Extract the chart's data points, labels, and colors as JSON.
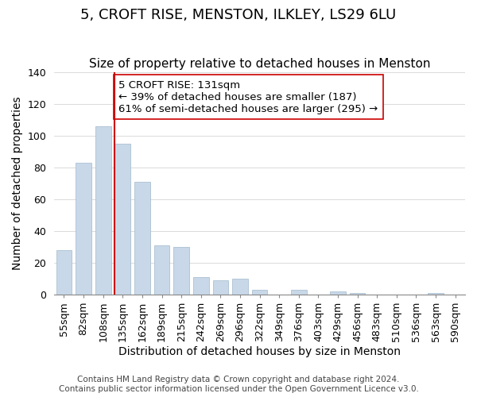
{
  "title": "5, CROFT RISE, MENSTON, ILKLEY, LS29 6LU",
  "subtitle": "Size of property relative to detached houses in Menston",
  "xlabel": "Distribution of detached houses by size in Menston",
  "ylabel": "Number of detached properties",
  "footer_lines": [
    "Contains HM Land Registry data © Crown copyright and database right 2024.",
    "Contains public sector information licensed under the Open Government Licence v3.0."
  ],
  "categories": [
    "55sqm",
    "82sqm",
    "108sqm",
    "135sqm",
    "162sqm",
    "189sqm",
    "215sqm",
    "242sqm",
    "269sqm",
    "296sqm",
    "322sqm",
    "349sqm",
    "376sqm",
    "403sqm",
    "429sqm",
    "456sqm",
    "483sqm",
    "510sqm",
    "536sqm",
    "563sqm",
    "590sqm"
  ],
  "values": [
    28,
    83,
    106,
    95,
    71,
    31,
    30,
    11,
    9,
    10,
    3,
    0,
    3,
    0,
    2,
    1,
    0,
    0,
    0,
    1,
    0
  ],
  "bar_color": "#c8d8e8",
  "bar_edge_color": "#a0b8cc",
  "vline_x_index": 3,
  "vline_color": "#cc0000",
  "annotation_text": "5 CROFT RISE: 131sqm\n← 39% of detached houses are smaller (187)\n61% of semi-detached houses are larger (295) →",
  "annotation_box_color": "#ffffff",
  "annotation_box_edge": "#cc0000",
  "ylim": [
    0,
    140
  ],
  "yticks": [
    0,
    20,
    40,
    60,
    80,
    100,
    120,
    140
  ],
  "grid_color": "#cccccc",
  "background_color": "#ffffff",
  "title_fontsize": 13,
  "subtitle_fontsize": 11,
  "axis_label_fontsize": 10,
  "tick_fontsize": 9,
  "annotation_fontsize": 9.5,
  "footer_fontsize": 7.5
}
